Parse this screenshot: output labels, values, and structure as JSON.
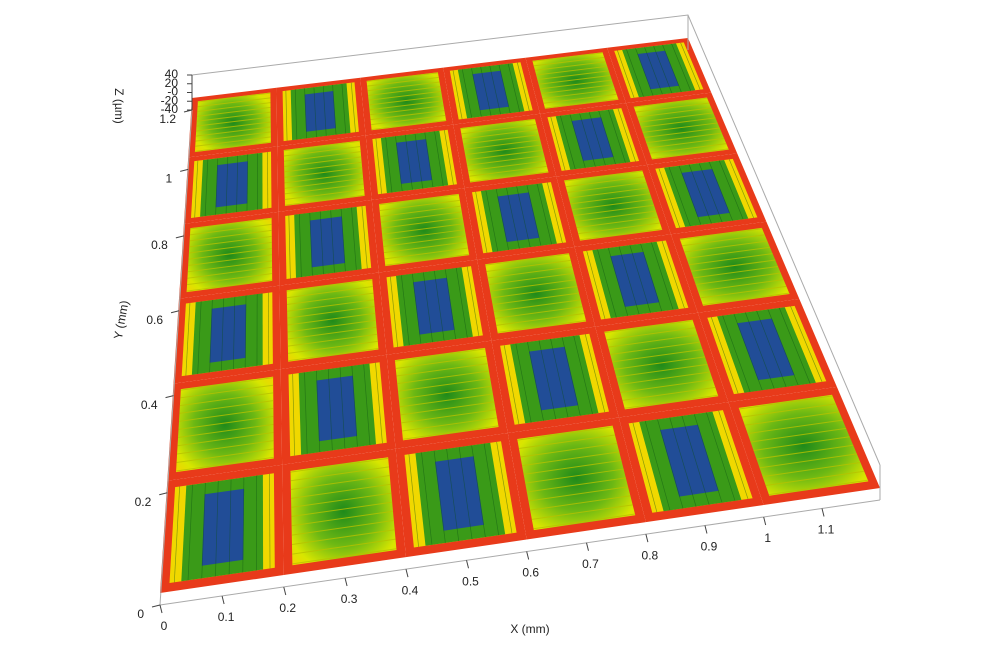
{
  "chart_data": {
    "type": "surface3d",
    "x_label": "X (mm)",
    "y_label": "Y (mm)",
    "z_label": "Z (µm)",
    "xlim": [
      0,
      1.2
    ],
    "xticks": [
      0,
      0.1,
      0.2,
      0.3,
      0.4,
      0.5,
      0.6,
      0.7,
      0.8,
      0.9,
      1,
      1.1
    ],
    "ylim": [
      0,
      1.2
    ],
    "yticks": [
      0,
      0.2,
      0.4,
      0.6,
      0.8,
      1,
      1.2
    ],
    "zlim": [
      -40,
      40
    ],
    "zticks": [
      -40,
      -20,
      {
        "value": 0,
        "label": "-0"
      },
      20,
      40
    ]
  }
}
